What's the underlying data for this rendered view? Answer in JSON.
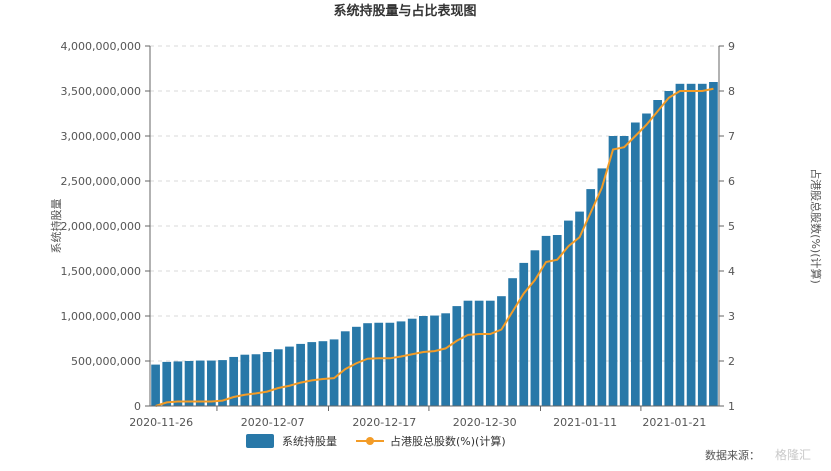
{
  "chart_data": {
    "type": "bar",
    "title": "系统持股量与占比表现图",
    "x_tick_labels": [
      "2020-11-26",
      "2020-12-07",
      "2020-12-17",
      "2020-12-30",
      "2021-01-11",
      "2021-01-21"
    ],
    "y_left": {
      "label": "系统持股量",
      "min": 0,
      "max": 4000000000,
      "step": 500000000
    },
    "y_right": {
      "label": "占港股总股数(%)(计算)",
      "min": 1,
      "max": 9,
      "step": 1
    },
    "grid": true,
    "legend_position": "bottom",
    "series": [
      {
        "name": "系统持股量",
        "type": "bar",
        "axis": "left",
        "color": "#2878a8",
        "values": [
          460000000,
          490000000,
          495000000,
          500000000,
          505000000,
          505000000,
          510000000,
          545000000,
          570000000,
          575000000,
          600000000,
          630000000,
          660000000,
          690000000,
          710000000,
          720000000,
          740000000,
          830000000,
          880000000,
          920000000,
          925000000,
          925000000,
          940000000,
          970000000,
          1000000000,
          1005000000,
          1030000000,
          1110000000,
          1170000000,
          1170000000,
          1170000000,
          1220000000,
          1420000000,
          1590000000,
          1730000000,
          1890000000,
          1900000000,
          2060000000,
          2160000000,
          2410000000,
          2640000000,
          3000000000,
          3000000000,
          3150000000,
          3250000000,
          3400000000,
          3500000000,
          3580000000,
          3580000000,
          3580000000,
          3600000000
        ]
      },
      {
        "name": "占港股总股数(%)(计算)",
        "type": "line",
        "axis": "right",
        "color": "#f39c27",
        "values": [
          1.0,
          1.08,
          1.1,
          1.1,
          1.1,
          1.1,
          1.12,
          1.2,
          1.25,
          1.28,
          1.32,
          1.4,
          1.45,
          1.52,
          1.57,
          1.6,
          1.62,
          1.82,
          1.95,
          2.05,
          2.06,
          2.06,
          2.1,
          2.15,
          2.2,
          2.22,
          2.28,
          2.45,
          2.58,
          2.6,
          2.6,
          2.7,
          3.1,
          3.5,
          3.8,
          4.2,
          4.25,
          4.55,
          4.75,
          5.3,
          5.85,
          6.7,
          6.75,
          7.0,
          7.25,
          7.55,
          7.85,
          8.0,
          8.0,
          8.0,
          8.05
        ]
      }
    ]
  },
  "source_label": "数据来源：",
  "watermark": "格隆汇",
  "colors": {
    "bar": "#2878a8",
    "line": "#f39c27",
    "grid": "#d9d9d9"
  }
}
